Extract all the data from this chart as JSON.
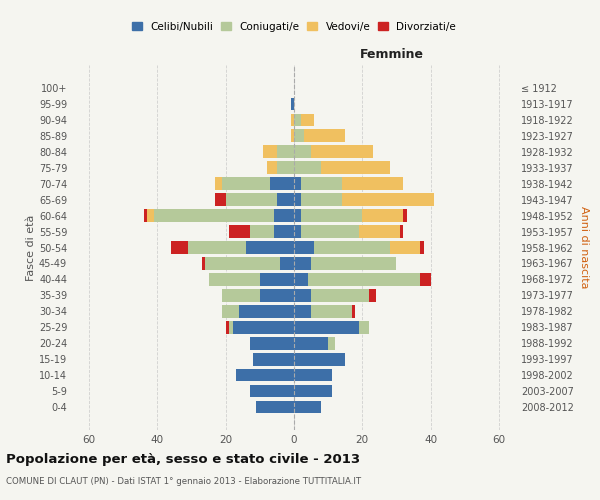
{
  "age_groups": [
    "0-4",
    "5-9",
    "10-14",
    "15-19",
    "20-24",
    "25-29",
    "30-34",
    "35-39",
    "40-44",
    "45-49",
    "50-54",
    "55-59",
    "60-64",
    "65-69",
    "70-74",
    "75-79",
    "80-84",
    "85-89",
    "90-94",
    "95-99",
    "100+"
  ],
  "birth_years": [
    "2008-2012",
    "2003-2007",
    "1998-2002",
    "1993-1997",
    "1988-1992",
    "1983-1987",
    "1978-1982",
    "1973-1977",
    "1968-1972",
    "1963-1967",
    "1958-1962",
    "1953-1957",
    "1948-1952",
    "1943-1947",
    "1938-1942",
    "1933-1937",
    "1928-1932",
    "1923-1927",
    "1918-1922",
    "1913-1917",
    "≤ 1912"
  ],
  "males": {
    "celibi": [
      11,
      13,
      17,
      12,
      13,
      18,
      16,
      10,
      10,
      4,
      14,
      6,
      6,
      5,
      7,
      0,
      0,
      0,
      0,
      1,
      0
    ],
    "coniugati": [
      0,
      0,
      0,
      0,
      0,
      1,
      5,
      11,
      15,
      22,
      17,
      7,
      35,
      15,
      14,
      5,
      5,
      0,
      0,
      0,
      0
    ],
    "vedovi": [
      0,
      0,
      0,
      0,
      0,
      0,
      0,
      0,
      0,
      0,
      0,
      0,
      2,
      0,
      2,
      3,
      4,
      1,
      1,
      0,
      0
    ],
    "divorziati": [
      0,
      0,
      0,
      0,
      0,
      1,
      0,
      0,
      0,
      1,
      5,
      6,
      1,
      3,
      0,
      0,
      0,
      0,
      0,
      0,
      0
    ]
  },
  "females": {
    "nubili": [
      8,
      11,
      11,
      15,
      10,
      19,
      5,
      5,
      4,
      5,
      6,
      2,
      2,
      2,
      2,
      0,
      0,
      0,
      0,
      0,
      0
    ],
    "coniugate": [
      0,
      0,
      0,
      0,
      2,
      3,
      12,
      17,
      33,
      25,
      22,
      17,
      18,
      12,
      12,
      8,
      5,
      3,
      2,
      0,
      0
    ],
    "vedove": [
      0,
      0,
      0,
      0,
      0,
      0,
      0,
      0,
      0,
      0,
      9,
      12,
      12,
      27,
      18,
      20,
      18,
      12,
      4,
      0,
      0
    ],
    "divorziate": [
      0,
      0,
      0,
      0,
      0,
      0,
      1,
      2,
      3,
      0,
      1,
      1,
      1,
      0,
      0,
      0,
      0,
      0,
      0,
      0,
      0
    ]
  },
  "colors": {
    "celibi": "#3d6fa8",
    "coniugati": "#b5c99a",
    "vedovi": "#f0c060",
    "divorziati": "#cc2222"
  },
  "legend_labels": [
    "Celibi/Nubili",
    "Coniugati/e",
    "Vedovi/e",
    "Divorziati/e"
  ],
  "title": "Popolazione per età, sesso e stato civile - 2013",
  "subtitle": "COMUNE DI CLAUT (PN) - Dati ISTAT 1° gennaio 2013 - Elaborazione TUTTITALIA.IT",
  "xlabel_right": "Femmine",
  "ylabel_left": "Fasce di età",
  "ylabel_right": "Anni di nascita",
  "xlim": 65,
  "background_color": "#f5f5f0",
  "grid_color": "#cccccc"
}
